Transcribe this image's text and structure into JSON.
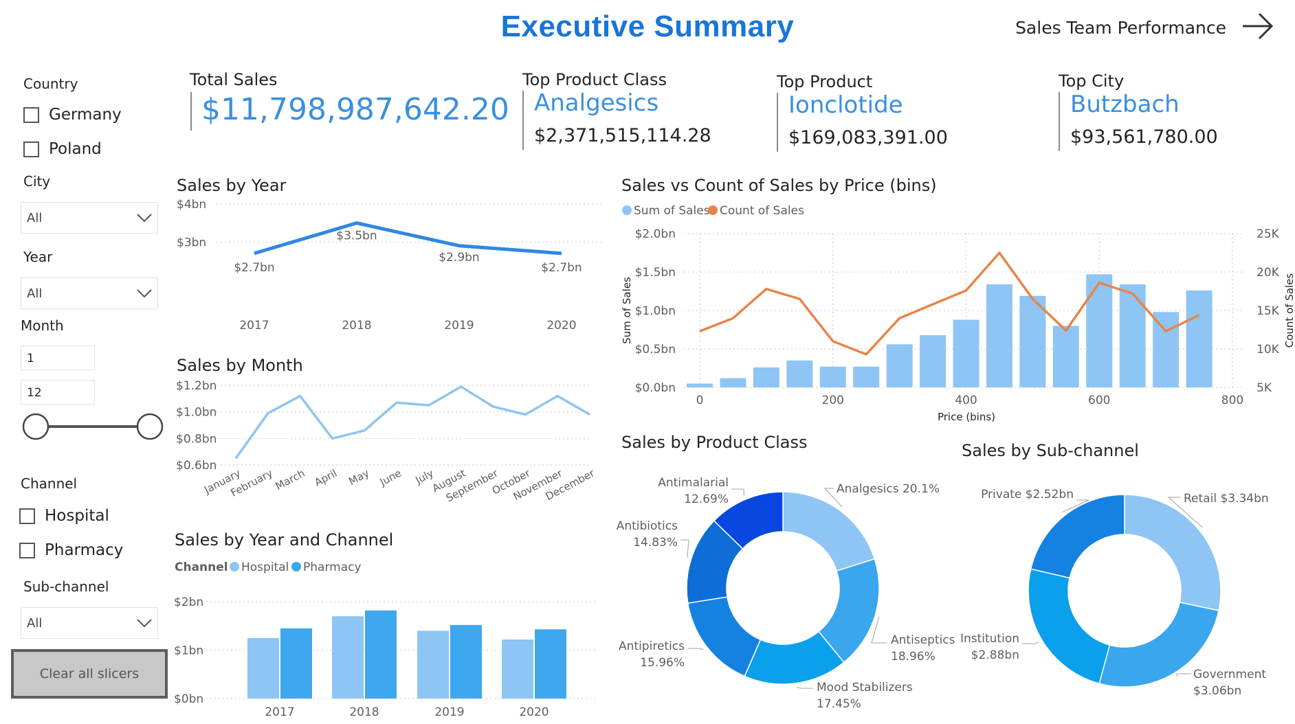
{
  "header": {
    "title": "Executive Summary",
    "nav_label": "Sales Team Performance"
  },
  "slicers": {
    "country": {
      "label": "Country",
      "options": [
        "Germany",
        "Poland"
      ]
    },
    "city": {
      "label": "City",
      "value": "All"
    },
    "year": {
      "label": "Year",
      "value": "All"
    },
    "month": {
      "label": "Month",
      "min": "1",
      "max": "12"
    },
    "channel": {
      "label": "Channel",
      "options": [
        "Hospital",
        "Pharmacy"
      ]
    },
    "subchannel": {
      "label": "Sub-channel",
      "value": "All"
    },
    "clear_label": "Clear all slicers"
  },
  "kpis": {
    "total_sales": {
      "label": "Total Sales",
      "value": "$11,798,987,642.20"
    },
    "top_product_class": {
      "label": "Top Product Class",
      "value": "Analgesics",
      "sub": "$2,371,515,114.28"
    },
    "top_product": {
      "label": "Top Product",
      "value": "Ionclotide",
      "sub": "$169,083,391.00"
    },
    "top_city": {
      "label": "Top City",
      "value": "Butzbach",
      "sub": "$93,561,780.00"
    }
  },
  "colors": {
    "accent": "#1976d8",
    "light_blue": "#8ec5f4",
    "mid_blue": "#3fa7ee",
    "line_year": "#2f88e0",
    "line_month": "#8fc4f1",
    "orange": "#e8844a"
  },
  "chart_data": [
    {
      "id": "sales_by_year",
      "type": "line",
      "title": "Sales by Year",
      "categories": [
        "2017",
        "2018",
        "2019",
        "2020"
      ],
      "values": [
        2.7,
        3.5,
        2.9,
        2.7
      ],
      "data_labels": [
        "$2.7bn",
        "$3.5bn",
        "$2.9bn",
        "$2.7bn"
      ],
      "y_ticks": [
        "$4bn",
        "$3bn"
      ],
      "ylim": [
        2.1,
        4.0
      ],
      "grid": true
    },
    {
      "id": "sales_by_month",
      "type": "line",
      "title": "Sales by Month",
      "categories": [
        "January",
        "February",
        "March",
        "April",
        "May",
        "June",
        "July",
        "August",
        "September",
        "October",
        "November",
        "December"
      ],
      "values": [
        0.65,
        0.99,
        1.12,
        0.8,
        0.86,
        1.07,
        1.05,
        1.19,
        1.04,
        0.98,
        1.12,
        0.98
      ],
      "y_ticks": [
        "$1.2bn",
        "$1.0bn",
        "$0.8bn",
        "$0.6bn"
      ],
      "ylim": [
        0.6,
        1.2
      ],
      "grid": true
    },
    {
      "id": "sales_by_year_channel",
      "type": "bar",
      "title": "Sales by Year and Channel",
      "legend_title": "Channel",
      "categories": [
        "2017",
        "2018",
        "2019",
        "2020"
      ],
      "series": [
        {
          "name": "Hospital",
          "values": [
            1.25,
            1.7,
            1.4,
            1.22
          ]
        },
        {
          "name": "Pharmacy",
          "values": [
            1.45,
            1.82,
            1.52,
            1.43
          ]
        }
      ],
      "y_ticks": [
        "$2bn",
        "$1bn",
        "$0bn"
      ],
      "ylim": [
        0,
        2
      ],
      "grid": true
    },
    {
      "id": "sales_vs_count",
      "type": "bar",
      "title": "Sales vs Count of Sales by Price (bins)",
      "xlabel": "Price (bins)",
      "ylabel": "Sum of Sales",
      "y2label": "Count of Sales",
      "x": [
        0,
        50,
        100,
        150,
        200,
        250,
        300,
        350,
        400,
        450,
        500,
        550,
        600,
        650,
        700,
        750
      ],
      "series": [
        {
          "name": "Sum of Sales",
          "type": "bar",
          "values": [
            0.05,
            0.12,
            0.26,
            0.35,
            0.27,
            0.27,
            0.56,
            0.68,
            0.88,
            1.34,
            1.19,
            0.8,
            1.47,
            1.34,
            0.98,
            1.26
          ]
        },
        {
          "name": "Count of Sales",
          "type": "line",
          "values": [
            12300,
            14000,
            17800,
            16500,
            11000,
            9300,
            14000,
            15800,
            17600,
            22500,
            16500,
            12400,
            18600,
            17200,
            12300,
            14400
          ]
        }
      ],
      "x_ticks": [
        "0",
        "200",
        "400",
        "600",
        "800"
      ],
      "y_ticks": [
        "$2.0bn",
        "$1.5bn",
        "$1.0bn",
        "$0.5bn",
        "$0.0bn"
      ],
      "y2_ticks": [
        "25K",
        "20K",
        "15K",
        "10K",
        "5K"
      ],
      "ylim": [
        0,
        2.0
      ],
      "y2lim": [
        5000,
        25000
      ],
      "grid": true
    },
    {
      "id": "sales_by_product_class",
      "type": "pie",
      "title": "Sales by Product Class",
      "slices": [
        {
          "label": "Analgesics",
          "value": 20.1,
          "text": "Analgesics 20.1%"
        },
        {
          "label": "Antiseptics",
          "value": 18.96,
          "text": "18.96%"
        },
        {
          "label": "Mood Stabilizers",
          "value": 17.45,
          "text": "17.45%"
        },
        {
          "label": "Antipiretics",
          "value": 15.96,
          "text": "15.96%"
        },
        {
          "label": "Antibiotics",
          "value": 14.83,
          "text": "14.83%"
        },
        {
          "label": "Antimalarial",
          "value": 12.69,
          "text": "12.69%"
        }
      ]
    },
    {
      "id": "sales_by_subchannel",
      "type": "pie",
      "title": "Sales by Sub-channel",
      "slices": [
        {
          "label": "Retail",
          "value": 3.34,
          "text": "Retail $3.34bn"
        },
        {
          "label": "Government",
          "value": 3.06,
          "text": "$3.06bn"
        },
        {
          "label": "Institution",
          "value": 2.88,
          "text": "$2.88bn"
        },
        {
          "label": "Private",
          "value": 2.52,
          "text": "Private $2.52bn"
        }
      ]
    }
  ]
}
